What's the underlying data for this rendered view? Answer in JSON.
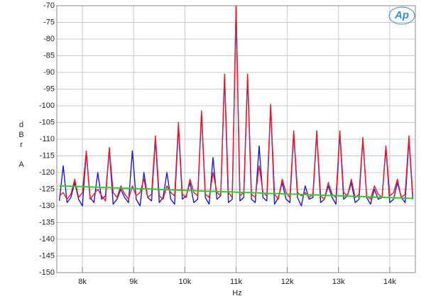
{
  "chart_data": {
    "type": "line",
    "x_label": "Hz",
    "y_label": "dBr A",
    "logo": "Ap",
    "grid": true,
    "xlim": [
      7500,
      14500
    ],
    "ylim": [
      -150,
      -70
    ],
    "xticks": [
      {
        "value": 8000,
        "label": "8k"
      },
      {
        "value": 9000,
        "label": "9k"
      },
      {
        "value": 10000,
        "label": "10k"
      },
      {
        "value": 11000,
        "label": "11k"
      },
      {
        "value": 12000,
        "label": "12k"
      },
      {
        "value": 13000,
        "label": "13k"
      },
      {
        "value": 14000,
        "label": "14k"
      }
    ],
    "yticks": [
      -70,
      -75,
      -80,
      -85,
      -90,
      -95,
      -100,
      -105,
      -110,
      -115,
      -120,
      -125,
      -130,
      -135,
      -140,
      -145,
      -150
    ],
    "x": [
      7550,
      7625,
      7700,
      7775,
      7850,
      7925,
      8000,
      8075,
      8150,
      8225,
      8300,
      8375,
      8450,
      8525,
      8600,
      8675,
      8750,
      8825,
      8900,
      8975,
      9050,
      9125,
      9200,
      9275,
      9350,
      9425,
      9500,
      9575,
      9650,
      9725,
      9800,
      9875,
      9950,
      10025,
      10100,
      10175,
      10250,
      10325,
      10400,
      10475,
      10550,
      10625,
      10700,
      10775,
      10850,
      10925,
      11000,
      11075,
      11150,
      11225,
      11300,
      11375,
      11450,
      11525,
      11600,
      11675,
      11750,
      11825,
      11900,
      11975,
      12050,
      12125,
      12200,
      12275,
      12350,
      12425,
      12500,
      12575,
      12650,
      12725,
      12800,
      12875,
      12950,
      13025,
      13100,
      13175,
      13250,
      13325,
      13400,
      13475,
      13550,
      13625,
      13700,
      13775,
      13850,
      13925,
      14000,
      14075,
      14150,
      14225,
      14300,
      14375,
      14450
    ],
    "series": [
      {
        "color": "#1a1ad8",
        "values": [
          -128.5,
          -118,
          -129,
          -127.5,
          -123,
          -128,
          -130,
          -114,
          -127.5,
          -129,
          -120,
          -128,
          -127,
          -113,
          -129.5,
          -128,
          -125,
          -127.5,
          -129,
          -113.5,
          -128,
          -130,
          -120,
          -127.5,
          -128.5,
          -110,
          -129,
          -127.5,
          -120,
          -128,
          -129.5,
          -106,
          -128,
          -127,
          -123,
          -129,
          -128,
          -102,
          -127.5,
          -129.5,
          -115.5,
          -128,
          -127,
          -91,
          -129,
          -128,
          -70,
          -128.5,
          -127.5,
          -91,
          -128,
          -129,
          -112,
          -127.5,
          -128.5,
          -100,
          -129.5,
          -127.5,
          -123,
          -128,
          -129,
          -108,
          -127.5,
          -130,
          -124,
          -128,
          -127.5,
          -108,
          -129,
          -128,
          -124,
          -127.5,
          -129.5,
          -108,
          -128,
          -127,
          -123,
          -129,
          -128,
          -110,
          -127.5,
          -129.5,
          -125,
          -128,
          -127.5,
          -112.5,
          -129,
          -128,
          -123,
          -127.5,
          -129,
          -110,
          -128
        ]
      },
      {
        "color": "#f01828",
        "values": [
          -127,
          -126,
          -128,
          -126.5,
          -122,
          -127.5,
          -126,
          -113.5,
          -128,
          -126.5,
          -125,
          -127,
          -128.5,
          -112.5,
          -126,
          -127.5,
          -124,
          -126.5,
          -128,
          -124,
          -127,
          -126,
          -122,
          -127.5,
          -126.5,
          -109,
          -127,
          -128,
          -124,
          -126,
          -127,
          -105,
          -126.5,
          -127.5,
          -122,
          -126,
          -127,
          -101.5,
          -126.5,
          -127.5,
          -120,
          -126,
          -127,
          -90.5,
          -126,
          -127.5,
          -70,
          -127,
          -126,
          -90.5,
          -126.5,
          -127.5,
          -118,
          -126,
          -127,
          -99.5,
          -126.5,
          -128,
          -122,
          -126,
          -127.5,
          -107.5,
          -126,
          -127,
          -126,
          -127.5,
          -126.5,
          -107.5,
          -127,
          -128,
          -123,
          -126.5,
          -127.5,
          -107.5,
          -126,
          -127,
          -122,
          -127.5,
          -126.5,
          -109.5,
          -127,
          -128,
          -124,
          -126.5,
          -127.5,
          -112,
          -127,
          -126,
          -122,
          -127.5,
          -126.5,
          -109,
          -127
        ]
      },
      {
        "color": "#2ccc2c",
        "values": [
          -124,
          -124,
          -124.1,
          -124.1,
          -124.2,
          -124.2,
          -124.2,
          -124.3,
          -124.3,
          -124.4,
          -124.4,
          -124.5,
          -124.5,
          -124.5,
          -124.6,
          -124.6,
          -124.7,
          -124.7,
          -124.7,
          -124.8,
          -124.8,
          -124.9,
          -124.9,
          -124.9,
          -125,
          -125,
          -125.1,
          -125.1,
          -125.1,
          -125.2,
          -125.2,
          -125.3,
          -125.3,
          -125.4,
          -125.4,
          -125.4,
          -125.5,
          -125.5,
          -125.6,
          -125.6,
          -125.6,
          -125.7,
          -125.7,
          -125.8,
          -125.8,
          -125.8,
          -125.9,
          -125.9,
          -126,
          -126,
          -126,
          -126.1,
          -126.1,
          -126.2,
          -126.2,
          -126.3,
          -126.3,
          -126.3,
          -126.4,
          -126.4,
          -126.5,
          -126.5,
          -126.5,
          -126.6,
          -126.6,
          -126.7,
          -126.7,
          -126.7,
          -126.8,
          -126.8,
          -126.9,
          -126.9,
          -126.9,
          -127,
          -127,
          -127.1,
          -127.1,
          -127.2,
          -127.2,
          -127.2,
          -127.3,
          -127.3,
          -127.4,
          -127.4,
          -127.4,
          -127.5,
          -127.5,
          -127.6,
          -127.6,
          -127.6,
          -127.7,
          -127.7,
          -127.8
        ]
      }
    ]
  }
}
